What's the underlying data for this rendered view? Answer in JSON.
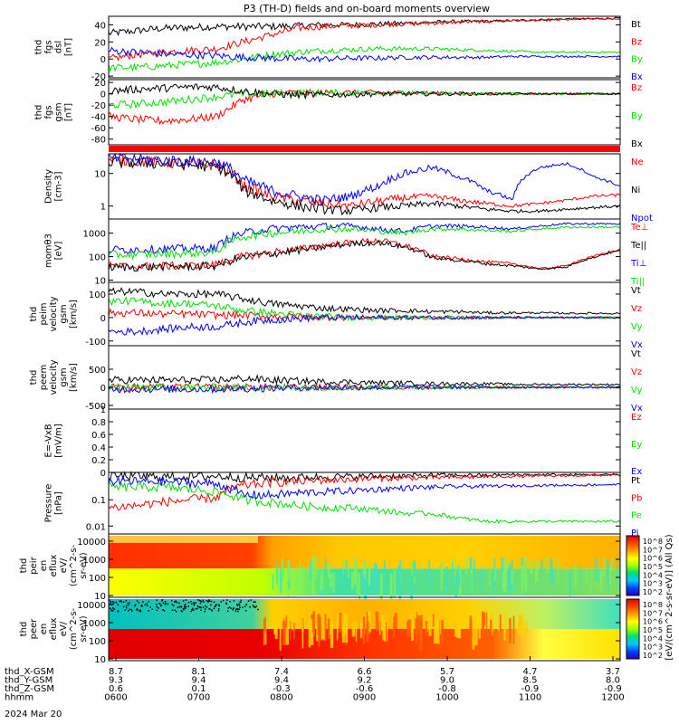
{
  "title": "P3 (TH-D) fields and on-board moments overview",
  "colors": {
    "black": "#000000",
    "red": "#ff0000",
    "green": "#00e000",
    "blue": "#0000ff"
  },
  "chart_data": [
    {
      "type": "line",
      "panel": "fgs-dsl",
      "ylabel": [
        "thd",
        "fgs",
        "dsl",
        "[nT]"
      ],
      "ylim": [
        -22,
        50
      ],
      "yticks": [
        -20,
        0,
        20,
        40
      ],
      "series": [
        {
          "name": "Bt",
          "color": "black",
          "y": [
            30,
            33,
            36,
            37,
            38,
            38,
            38,
            39,
            40,
            40,
            41,
            42,
            43,
            44,
            44,
            45,
            46,
            47,
            47,
            48
          ]
        },
        {
          "name": "Bz",
          "color": "red",
          "y": [
            0,
            5,
            8,
            10,
            12,
            20,
            28,
            36,
            38,
            39,
            40,
            41,
            42,
            43,
            44,
            45,
            45,
            46,
            47,
            47
          ]
        },
        {
          "name": "By",
          "color": "green",
          "y": [
            -10,
            -10,
            -8,
            -6,
            -4,
            0,
            5,
            8,
            10,
            11,
            12,
            12,
            12,
            11,
            10,
            9,
            8,
            8,
            8,
            8
          ]
        },
        {
          "name": "Bx",
          "color": "blue",
          "y": [
            10,
            8,
            6,
            5,
            4,
            2,
            1,
            0,
            0,
            1,
            1,
            2,
            2,
            2,
            2,
            3,
            3,
            3,
            3,
            3
          ]
        }
      ]
    },
    {
      "type": "line",
      "panel": "fgs-gsm",
      "ylabel": [
        "thd",
        "fgs",
        "gsm",
        "[nT]"
      ],
      "ylim": [
        -90,
        25
      ],
      "yticks": [
        -80,
        -60,
        -40,
        -20,
        0,
        20
      ],
      "series": [
        {
          "name": "Bz",
          "color": "red",
          "y": [
            -40,
            -45,
            -48,
            -45,
            -40,
            -10,
            0,
            2,
            2,
            2,
            2,
            2,
            1,
            1,
            0,
            0,
            0,
            0,
            0,
            0
          ]
        },
        {
          "name": "By",
          "color": "green",
          "y": [
            -20,
            -18,
            -15,
            -10,
            -5,
            0,
            0,
            2,
            2,
            2,
            2,
            1,
            1,
            0,
            0,
            0,
            0,
            0,
            0,
            0
          ]
        },
        {
          "name": "Bx",
          "color": "black",
          "y": [
            5,
            8,
            10,
            12,
            12,
            5,
            0,
            -2,
            -2,
            -1,
            0,
            0,
            0,
            0,
            0,
            0,
            0,
            0,
            0,
            0
          ]
        }
      ]
    },
    {
      "type": "line",
      "panel": "density",
      "yscale": "log",
      "ylabel": [
        "Density",
        "[cm-3]"
      ],
      "ylim": [
        0.4,
        40
      ],
      "yticks": [
        1,
        10
      ],
      "series": [
        {
          "name": "Ne",
          "color": "red",
          "y": [
            25,
            24,
            22,
            20,
            18,
            4,
            2,
            1.5,
            1.2,
            1.0,
            1.4,
            1.8,
            2.0,
            1.5,
            1.2,
            1.0,
            1.2,
            1.5,
            2.0,
            2.2
          ]
        },
        {
          "name": "Ni",
          "color": "black",
          "y": [
            22,
            21,
            20,
            18,
            16,
            3,
            1.5,
            1.0,
            0.8,
            0.7,
            0.9,
            1.0,
            1.2,
            1.0,
            0.8,
            0.7,
            0.7,
            0.8,
            0.9,
            1.0
          ]
        },
        {
          "name": "Npot",
          "color": "blue",
          "y": [
            30,
            28,
            25,
            24,
            22,
            6,
            3,
            2,
            1.5,
            2,
            4,
            10,
            15,
            8,
            3,
            1.5,
            15,
            20,
            8,
            4
          ]
        }
      ]
    },
    {
      "type": "line",
      "panel": "temperature",
      "yscale": "log",
      "ylabel": [
        "momθ3",
        "[eV]"
      ],
      "ylim": [
        8,
        4000
      ],
      "yticks": [
        10,
        100,
        1000
      ],
      "series": [
        {
          "name": "Te⊥",
          "color": "red",
          "y": [
            40,
            38,
            40,
            40,
            45,
            100,
            150,
            200,
            300,
            400,
            500,
            300,
            100,
            80,
            60,
            50,
            30,
            40,
            100,
            200
          ]
        },
        {
          "name": "Te||",
          "color": "black",
          "y": [
            35,
            35,
            38,
            38,
            40,
            90,
            130,
            180,
            250,
            350,
            400,
            250,
            90,
            70,
            50,
            40,
            30,
            35,
            90,
            180
          ]
        },
        {
          "name": "Ti⊥",
          "color": "blue",
          "y": [
            200,
            200,
            210,
            220,
            230,
            1000,
            1500,
            1800,
            2000,
            2000,
            1500,
            1200,
            2000,
            2000,
            1800,
            1500,
            2000,
            2500,
            2500,
            2500
          ]
        },
        {
          "name": "Ti||",
          "color": "green",
          "y": [
            120,
            120,
            130,
            140,
            150,
            700,
            1000,
            1200,
            1500,
            1500,
            1200,
            1000,
            1500,
            1500,
            1300,
            1200,
            1500,
            1800,
            1800,
            1800
          ]
        }
      ]
    },
    {
      "type": "line",
      "panel": "peim-velocity",
      "ylabel": [
        "thd",
        "peim",
        "velocity",
        "gsm",
        "[km/s]"
      ],
      "ylim": [
        -120,
        150
      ],
      "yticks": [
        -100,
        0,
        100
      ],
      "series": [
        {
          "name": "Vt",
          "color": "black",
          "y": [
            110,
            110,
            100,
            100,
            100,
            80,
            60,
            50,
            40,
            35,
            30,
            30,
            25,
            25,
            20,
            20,
            20,
            18,
            18,
            18
          ]
        },
        {
          "name": "Vz",
          "color": "red",
          "y": [
            20,
            20,
            15,
            15,
            10,
            10,
            5,
            5,
            0,
            0,
            0,
            0,
            0,
            0,
            0,
            0,
            0,
            0,
            0,
            0
          ]
        },
        {
          "name": "Vy",
          "color": "green",
          "y": [
            70,
            70,
            60,
            60,
            50,
            30,
            20,
            10,
            5,
            0,
            0,
            0,
            0,
            0,
            0,
            0,
            0,
            0,
            0,
            0
          ]
        },
        {
          "name": "Vx",
          "color": "blue",
          "y": [
            -60,
            -60,
            -50,
            -40,
            -40,
            -20,
            -10,
            -5,
            0,
            0,
            0,
            0,
            0,
            0,
            0,
            0,
            0,
            0,
            0,
            0
          ]
        }
      ]
    },
    {
      "type": "line",
      "panel": "peem-velocity",
      "ylabel": [
        "thd",
        "peem",
        "velocity",
        "gsm",
        "[km/s]"
      ],
      "ylim": [
        -600,
        1150
      ],
      "yticks": [
        -500,
        0,
        500
      ],
      "series": [
        {
          "name": "Vt",
          "color": "black",
          "y": [
            200,
            200,
            200,
            200,
            200,
            250,
            200,
            180,
            150,
            150,
            120,
            120,
            100,
            100,
            100,
            80,
            80,
            80,
            80,
            80
          ]
        },
        {
          "name": "Vz",
          "color": "red",
          "y": [
            0,
            0,
            0,
            0,
            0,
            0,
            0,
            0,
            0,
            0,
            0,
            0,
            0,
            0,
            0,
            0,
            0,
            0,
            0,
            0
          ]
        },
        {
          "name": "Vy",
          "color": "green",
          "y": [
            0,
            0,
            0,
            0,
            0,
            0,
            0,
            0,
            0,
            0,
            0,
            0,
            0,
            0,
            0,
            0,
            0,
            0,
            0,
            0
          ]
        },
        {
          "name": "Vx",
          "color": "blue",
          "y": [
            -50,
            -50,
            -50,
            -50,
            -50,
            -30,
            -20,
            -10,
            0,
            0,
            0,
            0,
            0,
            0,
            0,
            0,
            0,
            0,
            0,
            0
          ]
        }
      ]
    },
    {
      "type": "line",
      "panel": "efield",
      "ylabel": [
        "E=-VxB",
        "[mV/m]"
      ],
      "ylim": [
        0,
        1.0
      ],
      "yticks": [
        0.0,
        0.2,
        0.4,
        0.6,
        0.8,
        1.0
      ],
      "series": [
        {
          "name": "Ez",
          "color": "red",
          "y": []
        },
        {
          "name": "Ey",
          "color": "green",
          "y": []
        },
        {
          "name": "Ex",
          "color": "blue",
          "y": []
        }
      ]
    },
    {
      "type": "line",
      "panel": "pressure",
      "yscale": "log",
      "ylabel": [
        "Pressure",
        "[nPa]"
      ],
      "ylim": [
        0.005,
        1.1
      ],
      "yticks": [
        0.01,
        0.1
      ],
      "series": [
        {
          "name": "Pt",
          "color": "black",
          "y": [
            0.8,
            0.8,
            0.75,
            0.75,
            0.8,
            0.7,
            0.7,
            0.7,
            0.75,
            0.75,
            0.8,
            0.8,
            0.85,
            0.85,
            0.85,
            0.9,
            0.9,
            0.9,
            0.9,
            0.9
          ]
        },
        {
          "name": "Pb",
          "color": "red",
          "y": [
            0.05,
            0.06,
            0.08,
            0.1,
            0.12,
            0.35,
            0.45,
            0.5,
            0.55,
            0.6,
            0.65,
            0.68,
            0.7,
            0.72,
            0.75,
            0.78,
            0.8,
            0.82,
            0.85,
            0.88
          ]
        },
        {
          "name": "Pe",
          "color": "green",
          "y": [
            0.3,
            0.3,
            0.3,
            0.25,
            0.2,
            0.1,
            0.08,
            0.06,
            0.05,
            0.05,
            0.04,
            0.03,
            0.03,
            0.02,
            0.015,
            0.015,
            0.015,
            0.015,
            0.015,
            0.015
          ]
        },
        {
          "name": "Pi",
          "color": "blue",
          "y": [
            0.5,
            0.5,
            0.5,
            0.45,
            0.4,
            0.15,
            0.15,
            0.18,
            0.2,
            0.22,
            0.25,
            0.28,
            0.3,
            0.32,
            0.33,
            0.34,
            0.35,
            0.36,
            0.37,
            0.38
          ]
        }
      ]
    },
    {
      "type": "heatmap",
      "panel": "peir",
      "ylabel": [
        "thd",
        "peir",
        "en",
        "eflux",
        "eV/",
        "(cm^2-s-",
        "sr-eV)"
      ],
      "yscale": "log",
      "ylim": [
        8,
        25000
      ],
      "yticks": [
        10,
        100,
        1000,
        10000
      ]
    },
    {
      "type": "heatmap",
      "panel": "peer",
      "ylabel": [
        "thd",
        "peer",
        "en",
        "eflux",
        "eV/",
        "(cm^2-s-",
        "sr-eV)"
      ],
      "yscale": "log",
      "ylim": [
        8,
        25000
      ],
      "yticks": [
        10,
        100,
        1000,
        10000
      ]
    }
  ],
  "colorbar": {
    "label": "[eV/(cm^2-s-sr-eV)] (All Qs)",
    "ticks": [
      "10^8",
      "10^7",
      "10^6",
      "10^5",
      "10^4",
      "10^3",
      "10^2"
    ],
    "lower_ticks": [
      "10^8",
      "10^7",
      "10^6",
      "10^5",
      "10^4",
      "10^3",
      "10^2"
    ]
  },
  "xaxis": {
    "rows": [
      {
        "label": "thd_X-GSM",
        "values": [
          "8.7",
          "8.1",
          "7.4",
          "6.6",
          "5.7",
          "4.7",
          "3.7"
        ]
      },
      {
        "label": "thd_Y-GSM",
        "values": [
          "9.3",
          "9.4",
          "9.4",
          "9.2",
          "9.0",
          "8.5",
          "8.0"
        ]
      },
      {
        "label": "thd_Z-GSM",
        "values": [
          "0.6",
          "0.1",
          "-0.3",
          "-0.6",
          "-0.8",
          "-0.9",
          "-0.9"
        ]
      },
      {
        "label": "hhmm",
        "values": [
          "0600",
          "0700",
          "0800",
          "0900",
          "1000",
          "1100",
          "1200"
        ]
      }
    ],
    "date": "2024 Mar 20"
  }
}
